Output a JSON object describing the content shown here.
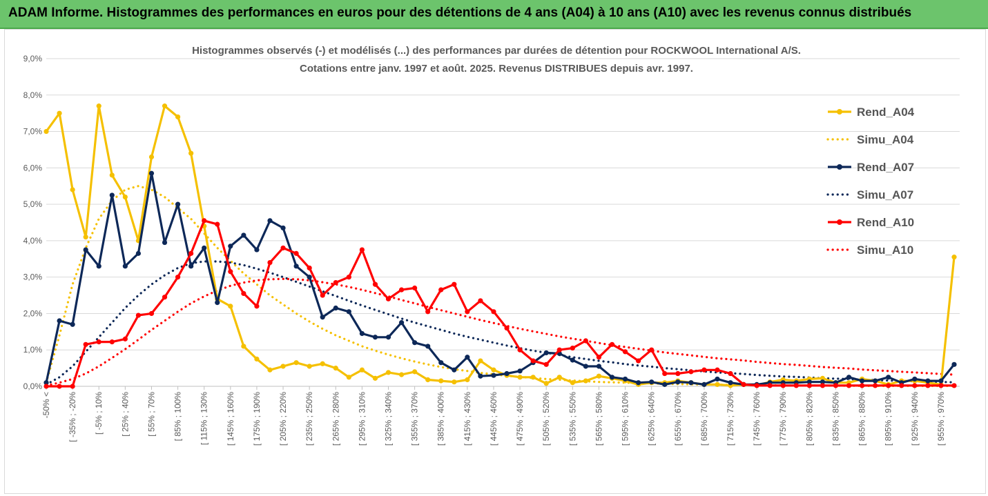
{
  "header": {
    "title": "ADAM Informe. Histogrammes des performances en euros pour des détentions de 4 ans (A04) à 10 ans (A10) avec les revenus connus distribués"
  },
  "chart_data": {
    "type": "line",
    "title": "Histogrammes observés (-) et modélisés (...) des performances par durées de détention pour ROCKWOOL International A/S.",
    "subtitle": "Cotations entre janv. 1997 et août. 2025. Revenus DISTRIBUES depuis avr. 1997.",
    "xlabel": "",
    "ylabel": "",
    "ylim": [
      0,
      9
    ],
    "y_ticks": [
      "0,0%",
      "1,0%",
      "2,0%",
      "3,0%",
      "4,0%",
      "5,0%",
      "6,0%",
      "7,0%",
      "8,0%",
      "9,0%"
    ],
    "grid": "horizontal",
    "legend_position": "right",
    "x_tick_labels": [
      "-50% <",
      "[ -35% ; -20%",
      "[ -5% ; 10%",
      "[ 25% ; 40%",
      "[ 55% ; 70%",
      "[ 85% ; 100%",
      "[ 115% ; 130%",
      "[ 145% ; 160%",
      "[ 175% ; 190%",
      "[ 205% ; 220%",
      "[ 235% ; 250%",
      "[ 265% ; 280%",
      "[ 295% ; 310%",
      "[ 325% ; 340%",
      "[ 355% ; 370%",
      "[ 385% ; 400%",
      "[ 415% ; 430%",
      "[ 445% ; 460%",
      "[ 475% ; 490%",
      "[ 505% ; 520%",
      "[ 535% ; 550%",
      "[ 565% ; 580%",
      "[ 595% ; 610%",
      "[ 625% ; 640%",
      "[ 655% ; 670%",
      "[ 685% ; 700%",
      "[ 715% ; 730%",
      "[ 745% ; 760%",
      "[ 775% ; 790%",
      "[ 805% ; 820%",
      "[ 835% ; 850%",
      "[ 865% ; 880%",
      "[ 895% ; 910%",
      "[ 925% ; 940%",
      "[ 955% ; 970%"
    ],
    "n_points": 70,
    "series": [
      {
        "name": "Rend_A04",
        "color": "#f5c000",
        "style": "solid-markers",
        "values": [
          7.0,
          7.5,
          5.4,
          4.1,
          7.7,
          5.8,
          5.2,
          4.0,
          6.3,
          7.7,
          7.4,
          6.4,
          4.4,
          2.4,
          2.2,
          1.1,
          0.75,
          0.45,
          0.55,
          0.65,
          0.55,
          0.62,
          0.5,
          0.25,
          0.45,
          0.22,
          0.38,
          0.32,
          0.4,
          0.18,
          0.15,
          0.12,
          0.18,
          0.7,
          0.45,
          0.3,
          0.25,
          0.25,
          0.08,
          0.25,
          0.1,
          0.15,
          0.28,
          0.22,
          0.15,
          0.05,
          0.1,
          0.1,
          0.15,
          0.1,
          0.05,
          0.05,
          0.02,
          0.05,
          0.03,
          0.12,
          0.18,
          0.15,
          0.2,
          0.22,
          0.1,
          0.1,
          0.2,
          0.15,
          0.05,
          0.15,
          0.15,
          0.1,
          0.05,
          3.55
        ]
      },
      {
        "name": "Simu_A04",
        "color": "#f5c000",
        "style": "dotted",
        "values": [
          0.1,
          1.4,
          2.8,
          3.8,
          4.6,
          5.1,
          5.4,
          5.5,
          5.4,
          5.2,
          4.9,
          4.6,
          4.2,
          3.8,
          3.45,
          3.1,
          2.8,
          2.5,
          2.25,
          2.0,
          1.78,
          1.58,
          1.4,
          1.25,
          1.1,
          0.98,
          0.87,
          0.77,
          0.68,
          0.6,
          0.53,
          0.47,
          0.42,
          0.37,
          0.33,
          0.29,
          0.26,
          0.23,
          0.2,
          0.18,
          0.16,
          0.14,
          0.12,
          0.11,
          0.1,
          0.09,
          0.08,
          0.07,
          0.06,
          0.055,
          0.05,
          0.045,
          0.04,
          0.035,
          0.03,
          0.03,
          0.025,
          0.02,
          0.02,
          0.02,
          0.015,
          0.015,
          0.01,
          0.01,
          0.01,
          0.01,
          0.01,
          0.01,
          0.01,
          0.01
        ]
      },
      {
        "name": "Rend_A07",
        "color": "#0d2858",
        "style": "solid-markers",
        "values": [
          0.1,
          1.8,
          1.7,
          3.75,
          3.3,
          5.25,
          3.3,
          3.65,
          5.85,
          3.95,
          5.0,
          3.3,
          3.8,
          2.3,
          3.85,
          4.15,
          3.75,
          4.55,
          4.35,
          3.3,
          3.0,
          1.9,
          2.15,
          2.05,
          1.45,
          1.35,
          1.35,
          1.75,
          1.2,
          1.1,
          0.65,
          0.45,
          0.8,
          0.28,
          0.3,
          0.35,
          0.42,
          0.65,
          0.92,
          0.9,
          0.72,
          0.55,
          0.55,
          0.25,
          0.2,
          0.1,
          0.12,
          0.05,
          0.12,
          0.1,
          0.05,
          0.2,
          0.1,
          0.05,
          0.05,
          0.1,
          0.1,
          0.1,
          0.12,
          0.12,
          0.1,
          0.25,
          0.15,
          0.15,
          0.25,
          0.1,
          0.2,
          0.15,
          0.15,
          0.6
        ]
      },
      {
        "name": "Simu_A07",
        "color": "#0d2858",
        "style": "dotted",
        "values": [
          0.05,
          0.25,
          0.55,
          0.95,
          1.35,
          1.75,
          2.15,
          2.5,
          2.8,
          3.05,
          3.25,
          3.38,
          3.43,
          3.43,
          3.4,
          3.33,
          3.23,
          3.12,
          3.0,
          2.87,
          2.74,
          2.61,
          2.48,
          2.35,
          2.22,
          2.1,
          1.98,
          1.86,
          1.75,
          1.65,
          1.55,
          1.45,
          1.36,
          1.28,
          1.2,
          1.12,
          1.05,
          0.98,
          0.92,
          0.86,
          0.8,
          0.75,
          0.7,
          0.66,
          0.61,
          0.57,
          0.54,
          0.5,
          0.47,
          0.44,
          0.41,
          0.38,
          0.36,
          0.34,
          0.31,
          0.29,
          0.27,
          0.26,
          0.24,
          0.22,
          0.21,
          0.2,
          0.18,
          0.17,
          0.16,
          0.15,
          0.14,
          0.13,
          0.12,
          0.11
        ]
      },
      {
        "name": "Rend_A10",
        "color": "#ff0000",
        "style": "solid-markers",
        "values": [
          0.0,
          0.0,
          0.0,
          1.15,
          1.22,
          1.22,
          1.3,
          1.95,
          2.0,
          2.45,
          3.0,
          3.65,
          4.55,
          4.45,
          3.15,
          2.55,
          2.2,
          3.4,
          3.8,
          3.65,
          3.25,
          2.5,
          2.85,
          3.0,
          3.75,
          2.8,
          2.4,
          2.65,
          2.7,
          2.05,
          2.65,
          2.8,
          2.05,
          2.35,
          2.05,
          1.6,
          1.0,
          0.7,
          0.6,
          1.0,
          1.05,
          1.25,
          0.8,
          1.15,
          0.95,
          0.7,
          1.0,
          0.35,
          0.35,
          0.4,
          0.45,
          0.45,
          0.35,
          0.05,
          0.02,
          0.02,
          0.02,
          0.02,
          0.02,
          0.02,
          0.02,
          0.02,
          0.02,
          0.02,
          0.02,
          0.02,
          0.02,
          0.02,
          0.02,
          0.02
        ]
      },
      {
        "name": "Simu_A10",
        "color": "#ff0000",
        "style": "dotted",
        "values": [
          0.02,
          0.1,
          0.2,
          0.35,
          0.55,
          0.78,
          1.02,
          1.28,
          1.55,
          1.8,
          2.05,
          2.28,
          2.47,
          2.63,
          2.76,
          2.85,
          2.91,
          2.94,
          2.95,
          2.94,
          2.91,
          2.86,
          2.8,
          2.73,
          2.65,
          2.56,
          2.47,
          2.37,
          2.28,
          2.18,
          2.09,
          2.0,
          1.91,
          1.82,
          1.74,
          1.66,
          1.58,
          1.51,
          1.44,
          1.37,
          1.31,
          1.25,
          1.19,
          1.13,
          1.08,
          1.03,
          0.98,
          0.93,
          0.89,
          0.85,
          0.81,
          0.77,
          0.74,
          0.71,
          0.67,
          0.64,
          0.61,
          0.59,
          0.56,
          0.53,
          0.51,
          0.49,
          0.46,
          0.44,
          0.42,
          0.4,
          0.38,
          0.36,
          0.34,
          0.32
        ]
      }
    ]
  }
}
